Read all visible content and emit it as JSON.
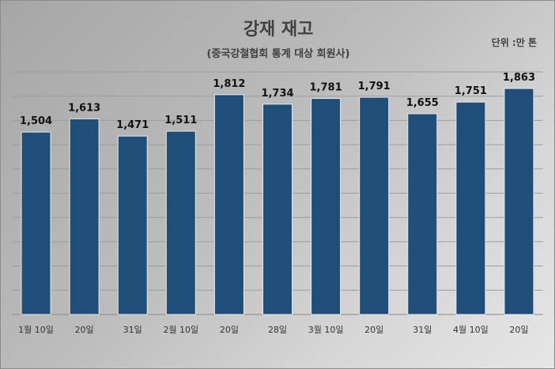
{
  "chart_data": {
    "type": "bar",
    "title": "강재 재고",
    "subtitle": "(중국강철협회 통계 대상 회원사)",
    "unit": "단위 :만 톤",
    "categories": [
      "1월 10일",
      "20일",
      "31일",
      "2월 10일",
      "20일",
      "28일",
      "3월 10일",
      "20일",
      "31일",
      "4월 10일",
      "20일"
    ],
    "values": [
      1504,
      1613,
      1471,
      1511,
      1812,
      1734,
      1781,
      1791,
      1655,
      1751,
      1863
    ],
    "value_labels": [
      "1,504",
      "1,613",
      "1,471",
      "1,511",
      "1,812",
      "1,734",
      "1,781",
      "1,791",
      "1,655",
      "1,751",
      "1,863"
    ],
    "ylim": [
      0,
      2000
    ],
    "grid": true,
    "bar_color": "#1f4e79",
    "legend": "none"
  }
}
